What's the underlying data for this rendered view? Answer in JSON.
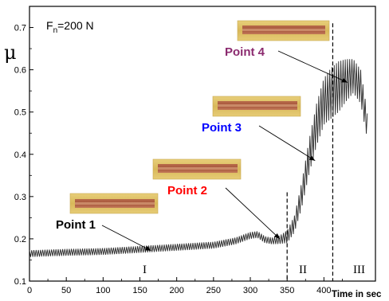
{
  "chart_data": {
    "type": "line",
    "title": "",
    "xlabel": "Time in sec",
    "ylabel": "μ",
    "xlim": [
      0,
      470
    ],
    "ylim": [
      0.1,
      0.75
    ],
    "x_ticks": [
      0,
      50,
      100,
      150,
      200,
      250,
      300,
      350,
      400
    ],
    "x_tick_labels": [
      "0",
      "50",
      "100",
      "150",
      "200",
      "250",
      "300",
      "350",
      "400"
    ],
    "y_ticks": [
      0.1,
      0.2,
      0.3,
      0.4,
      0.5,
      0.6,
      0.7
    ],
    "y_tick_labels": [
      "0.1",
      "0.2",
      "0.3",
      "0.4",
      "0.5",
      "0.6",
      "0.7"
    ],
    "condition_label": "F",
    "condition_subscript": "n",
    "condition_value": "=200 N",
    "series": [
      {
        "x": [
          0,
          50,
          100,
          150,
          200,
          250,
          280,
          300,
          310,
          320,
          330,
          340,
          350,
          360,
          370,
          380,
          390,
          400,
          410,
          420,
          430,
          440,
          450,
          460
        ],
        "y": [
          0.165,
          0.168,
          0.17,
          0.175,
          0.18,
          0.185,
          0.195,
          0.208,
          0.21,
          0.198,
          0.195,
          0.198,
          0.205,
          0.235,
          0.305,
          0.395,
          0.47,
          0.525,
          0.545,
          0.56,
          0.575,
          0.585,
          0.56,
          0.455
        ],
        "amplitude": [
          0.008,
          0.008,
          0.008,
          0.008,
          0.008,
          0.008,
          0.008,
          0.008,
          0.008,
          0.008,
          0.008,
          0.01,
          0.015,
          0.02,
          0.03,
          0.04,
          0.05,
          0.055,
          0.06,
          0.06,
          0.05,
          0.04,
          0.04,
          0.03
        ],
        "color": "#2b2b2b"
      }
    ],
    "region_boundaries": [
      350,
      412
    ],
    "regions": [
      {
        "label": "I",
        "x": 165
      },
      {
        "label": "II",
        "x": 380
      },
      {
        "label": "III",
        "x": 445
      }
    ],
    "annotations": [
      {
        "label": "Point 1",
        "color": "#000000",
        "point": [
          165,
          0.172
        ]
      },
      {
        "label": "Point 2",
        "color": "#ff0000",
        "point": [
          340,
          0.2
        ]
      },
      {
        "label": "Point 3",
        "color": "#0000ff",
        "point": [
          388,
          0.385
        ]
      },
      {
        "label": "Point 4",
        "color": "#8b2a6f",
        "point": [
          432,
          0.57
        ]
      }
    ]
  }
}
